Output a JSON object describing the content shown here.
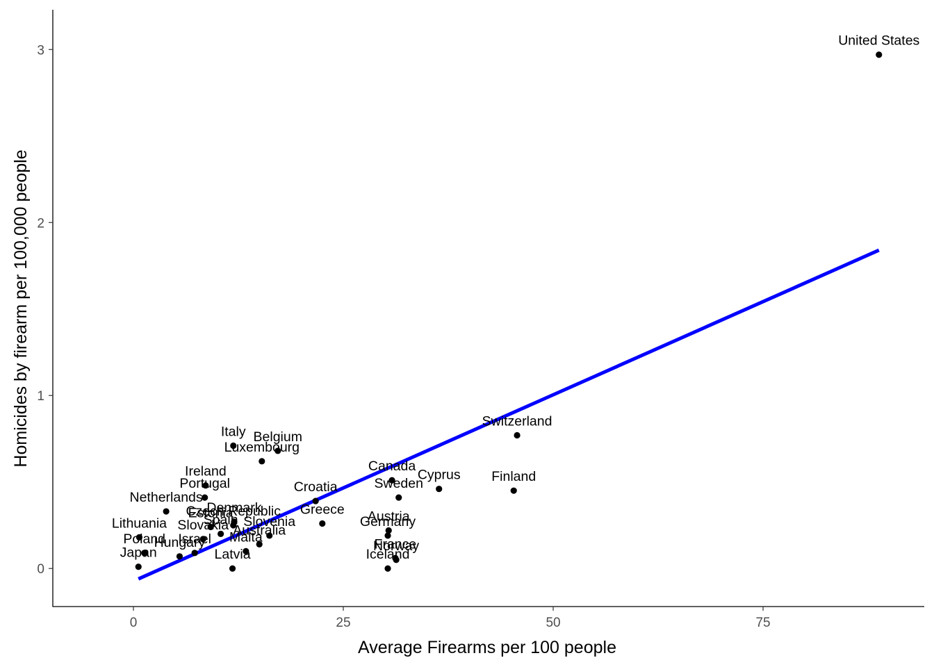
{
  "chart_data": {
    "type": "scatter",
    "title": "",
    "xlabel": "Average Firearms per 100 people",
    "ylabel": "Homicides by firearm per 100,000 people",
    "xlim": [
      -9.6,
      94.2
    ],
    "ylim": [
      -0.22,
      3.23
    ],
    "x_ticks": [
      0,
      25,
      50,
      75
    ],
    "y_ticks": [
      0,
      1,
      2,
      3
    ],
    "x_tick_labels": [
      "0",
      "25",
      "50",
      "75"
    ],
    "y_tick_labels": [
      "0",
      "1",
      "2",
      "3"
    ],
    "grid": false,
    "legend": "none",
    "point_color": "#000000",
    "trend_color": "#0000ff",
    "trendline": {
      "x": [
        0.6,
        88.8
      ],
      "y": [
        -0.06,
        1.84
      ]
    },
    "points": [
      {
        "label": "United States",
        "x": 88.8,
        "y": 2.97
      },
      {
        "label": "Switzerland",
        "x": 45.7,
        "y": 0.77
      },
      {
        "label": "Finland",
        "x": 45.3,
        "y": 0.45
      },
      {
        "label": "Cyprus",
        "x": 36.4,
        "y": 0.46
      },
      {
        "label": "Sweden",
        "x": 31.6,
        "y": 0.41
      },
      {
        "label": "Canada",
        "x": 30.8,
        "y": 0.51
      },
      {
        "label": "Norway",
        "x": 31.3,
        "y": 0.05
      },
      {
        "label": "France",
        "x": 31.2,
        "y": 0.06
      },
      {
        "label": "Austria",
        "x": 30.4,
        "y": 0.22
      },
      {
        "label": "Germany",
        "x": 30.3,
        "y": 0.19
      },
      {
        "label": "Iceland",
        "x": 30.3,
        "y": 0.0
      },
      {
        "label": "Greece",
        "x": 22.5,
        "y": 0.26
      },
      {
        "label": "Croatia",
        "x": 21.7,
        "y": 0.39
      },
      {
        "label": "Belgium",
        "x": 17.2,
        "y": 0.68
      },
      {
        "label": "Slovenia",
        "x": 16.2,
        "y": 0.19
      },
      {
        "label": "Luxembourg",
        "x": 15.3,
        "y": 0.62
      },
      {
        "label": "Australia",
        "x": 15.0,
        "y": 0.14
      },
      {
        "label": "Malta",
        "x": 13.4,
        "y": 0.1
      },
      {
        "label": "Denmark",
        "x": 12.0,
        "y": 0.27
      },
      {
        "label": "Czech Republic",
        "x": 11.9,
        "y": 0.25
      },
      {
        "label": "Italy",
        "x": 11.9,
        "y": 0.71
      },
      {
        "label": "Latvia",
        "x": 11.8,
        "y": 0.0
      },
      {
        "label": "Spain",
        "x": 10.4,
        "y": 0.2
      },
      {
        "label": "Estonia",
        "x": 9.2,
        "y": 0.24
      },
      {
        "label": "Ireland",
        "x": 8.6,
        "y": 0.48
      },
      {
        "label": "Portugal",
        "x": 8.5,
        "y": 0.41
      },
      {
        "label": "Slovakia",
        "x": 8.3,
        "y": 0.17
      },
      {
        "label": "Israel",
        "x": 7.3,
        "y": 0.09
      },
      {
        "label": "Hungary",
        "x": 5.5,
        "y": 0.07
      },
      {
        "label": "Netherlands",
        "x": 3.9,
        "y": 0.33
      },
      {
        "label": "Poland",
        "x": 1.3,
        "y": 0.09
      },
      {
        "label": "Lithuania",
        "x": 0.7,
        "y": 0.18
      },
      {
        "label": "Japan",
        "x": 0.6,
        "y": 0.01
      }
    ]
  }
}
